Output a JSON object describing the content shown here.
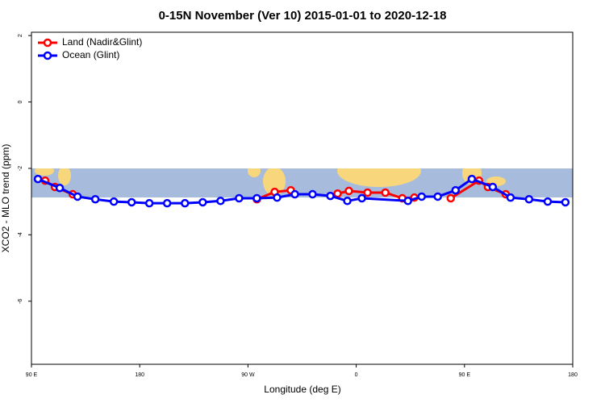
{
  "chart_data": {
    "type": "line",
    "title": "0-15N November (Ver 10)   2015-01-01 to 2020-12-18",
    "x_label": "Longitude (deg E)",
    "y_label": "XCO2 - MLO trend (ppm)",
    "xlim": [
      90,
      540
    ],
    "xticks": [
      {
        "value": 90,
        "label": "90 E"
      },
      {
        "value": 180,
        "label": "180"
      },
      {
        "value": 270,
        "label": "90 W"
      },
      {
        "value": 360,
        "label": "0"
      },
      {
        "value": 450,
        "label": "90 E"
      },
      {
        "value": 540,
        "label": "180"
      }
    ],
    "ylim": [
      -7.9,
      2.1
    ],
    "yticks": [
      2,
      0,
      -2,
      -4,
      -6
    ],
    "legend": "top-left",
    "series": [
      {
        "name": "Land (Nadir&Glint)",
        "color": "#ff0000",
        "x": [
          101.4,
          109.5,
          124.3,
          null,
          277.4,
          292.2,
          305.6,
          null,
          344.5,
          353.9,
          369.4,
          384.2,
          398.3,
          408.3,
          null,
          438.6,
          462.1,
          469.5,
          484.3
        ],
        "values": [
          -2.37,
          -2.56,
          -2.78,
          null,
          -2.93,
          -2.71,
          -2.66,
          null,
          -2.76,
          -2.68,
          -2.73,
          -2.73,
          -2.9,
          -2.88,
          null,
          -2.9,
          -2.37,
          -2.56,
          -2.78
        ]
      },
      {
        "name": "Ocean (Glint)",
        "color": "#0000ff",
        "x": [
          95.4,
          113.5,
          128.3,
          143.1,
          158.5,
          173.3,
          188,
          202.8,
          217.6,
          232.4,
          247.2,
          262.6,
          277.4,
          294.2,
          309,
          323.7,
          338.5,
          352.6,
          364.7,
          403,
          414.4,
          427.8,
          442.6,
          456.1,
          473.5,
          488.3,
          503.7,
          519.2,
          533.9
        ],
        "values": [
          -2.32,
          -2.59,
          -2.85,
          -2.93,
          -3.0,
          -3.02,
          -3.05,
          -3.05,
          -3.05,
          -3.02,
          -2.98,
          -2.9,
          -2.9,
          -2.88,
          -2.78,
          -2.78,
          -2.83,
          -2.98,
          -2.9,
          -2.98,
          -2.85,
          -2.85,
          -2.66,
          -2.32,
          -2.56,
          -2.88,
          -2.93,
          -3.0,
          -3.02
        ]
      }
    ]
  }
}
